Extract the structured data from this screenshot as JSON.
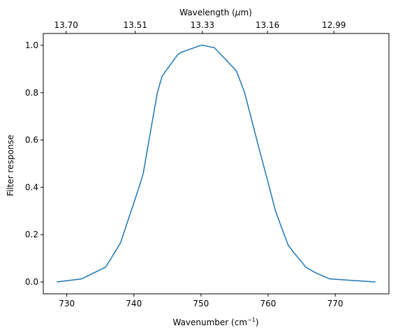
{
  "chart_data": {
    "type": "line",
    "title": "",
    "xlabel": "Wavenumber (cm",
    "xlabel_sup": "−1",
    "xlabel_end": ")",
    "ylabel": "Filter response",
    "top_xlabel": "Wavelength (",
    "top_xlabel_mu": "μ",
    "top_xlabel_end": "m)",
    "xlim": [
      726.5,
      778.0
    ],
    "ylim": [
      -0.05,
      1.05
    ],
    "x_ticks": [
      730,
      740,
      750,
      760,
      770
    ],
    "x_tick_labels": [
      "730",
      "740",
      "750",
      "760",
      "770"
    ],
    "y_ticks": [
      0.0,
      0.2,
      0.4,
      0.6,
      0.8,
      1.0
    ],
    "y_tick_labels": [
      "0.0",
      "0.2",
      "0.4",
      "0.6",
      "0.8",
      "1.0"
    ],
    "top_ticks": [
      729.9,
      740.2,
      750.2,
      759.9,
      769.8
    ],
    "top_tick_labels": [
      "13.70",
      "13.51",
      "13.33",
      "13.16",
      "12.99"
    ],
    "grid": false,
    "line_color": "#1f77b4",
    "series": [
      {
        "x": [
          728.5,
          732.2,
          735.8,
          738.0,
          740.8,
          741.4,
          742.5,
          743.5,
          744.2,
          746.5,
          747.0,
          750.0,
          750.3,
          752.0,
          755.0,
          755.3,
          756.5,
          758.5,
          760.0,
          761.1,
          762.0,
          763.0,
          763.8,
          765.0,
          765.6,
          767.0,
          769.2,
          776.0
        ],
        "y": [
          0.0,
          0.013,
          0.063,
          0.165,
          0.403,
          0.46,
          0.64,
          0.8,
          0.87,
          0.96,
          0.97,
          1.0,
          1.0,
          0.99,
          0.9,
          0.89,
          0.8,
          0.58,
          0.42,
          0.3,
          0.23,
          0.155,
          0.125,
          0.085,
          0.063,
          0.04,
          0.013,
          0.0
        ]
      }
    ]
  }
}
